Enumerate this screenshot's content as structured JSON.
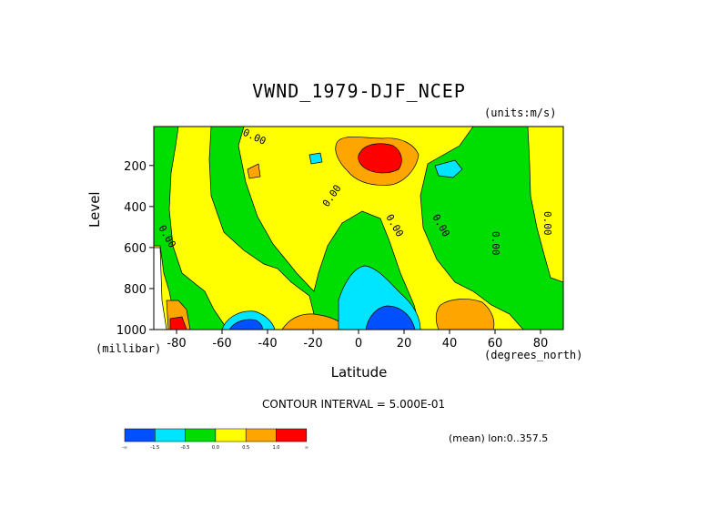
{
  "chart_data": {
    "type": "heatmap",
    "title": "VWND_1979-DJF_NCEP",
    "units_note": "(units:m/s)",
    "xlabel": "Latitude",
    "xunit": "(degrees_north)",
    "ylabel": "Level",
    "yunit": "(millibar)",
    "xlim": [
      -90,
      90
    ],
    "ylim": [
      1000,
      10
    ],
    "x_ticks": [
      "-80",
      "-60",
      "-40",
      "-20",
      "0",
      "20",
      "40",
      "60",
      "80"
    ],
    "x_tick_values": [
      -80,
      -60,
      -40,
      -20,
      0,
      20,
      40,
      60,
      80
    ],
    "y_ticks": [
      "200",
      "400",
      "600",
      "800",
      "1000"
    ],
    "y_tick_values": [
      200,
      400,
      600,
      800,
      1000
    ],
    "contour_interval_text": "CONTOUR INTERVAL = 5.000E-01",
    "mean_note": "(mean) lon:0..357.5",
    "contour_labels": [
      "0.00",
      "0.00",
      "0.00",
      "0.00",
      "0.00",
      "0.00",
      "0.00"
    ],
    "color_levels": [
      {
        "color": "#0050ff",
        "label": "-∞"
      },
      {
        "color": "#00e5ff",
        "label": "-1.5"
      },
      {
        "color": "#00dd00",
        "label": "-0.5"
      },
      {
        "color": "#ffff00",
        "label": "0.0"
      },
      {
        "color": "#ffa500",
        "label": "0.5"
      },
      {
        "color": "#ff0000",
        "label": "1.0"
      },
      {
        "color": "#ffffff",
        "label": "∞"
      }
    ],
    "features": [
      {
        "name": "upper-level positive maximum",
        "lat": 10,
        "level": 150,
        "value": 1.5
      },
      {
        "name": "surface negative minimum (tropics)",
        "lat": 12,
        "level": 950,
        "value": -2.0
      },
      {
        "name": "surface negative minimum (southern mid-latitudes)",
        "lat": -52,
        "level": 980,
        "value": -1.7
      },
      {
        "name": "surface positive maximum (Antarctic)",
        "lat": -83,
        "level": 980,
        "value": 1.2
      },
      {
        "name": "surface positive (northern mid-latitudes)",
        "lat": 45,
        "level": 930,
        "value": 0.7
      }
    ]
  }
}
